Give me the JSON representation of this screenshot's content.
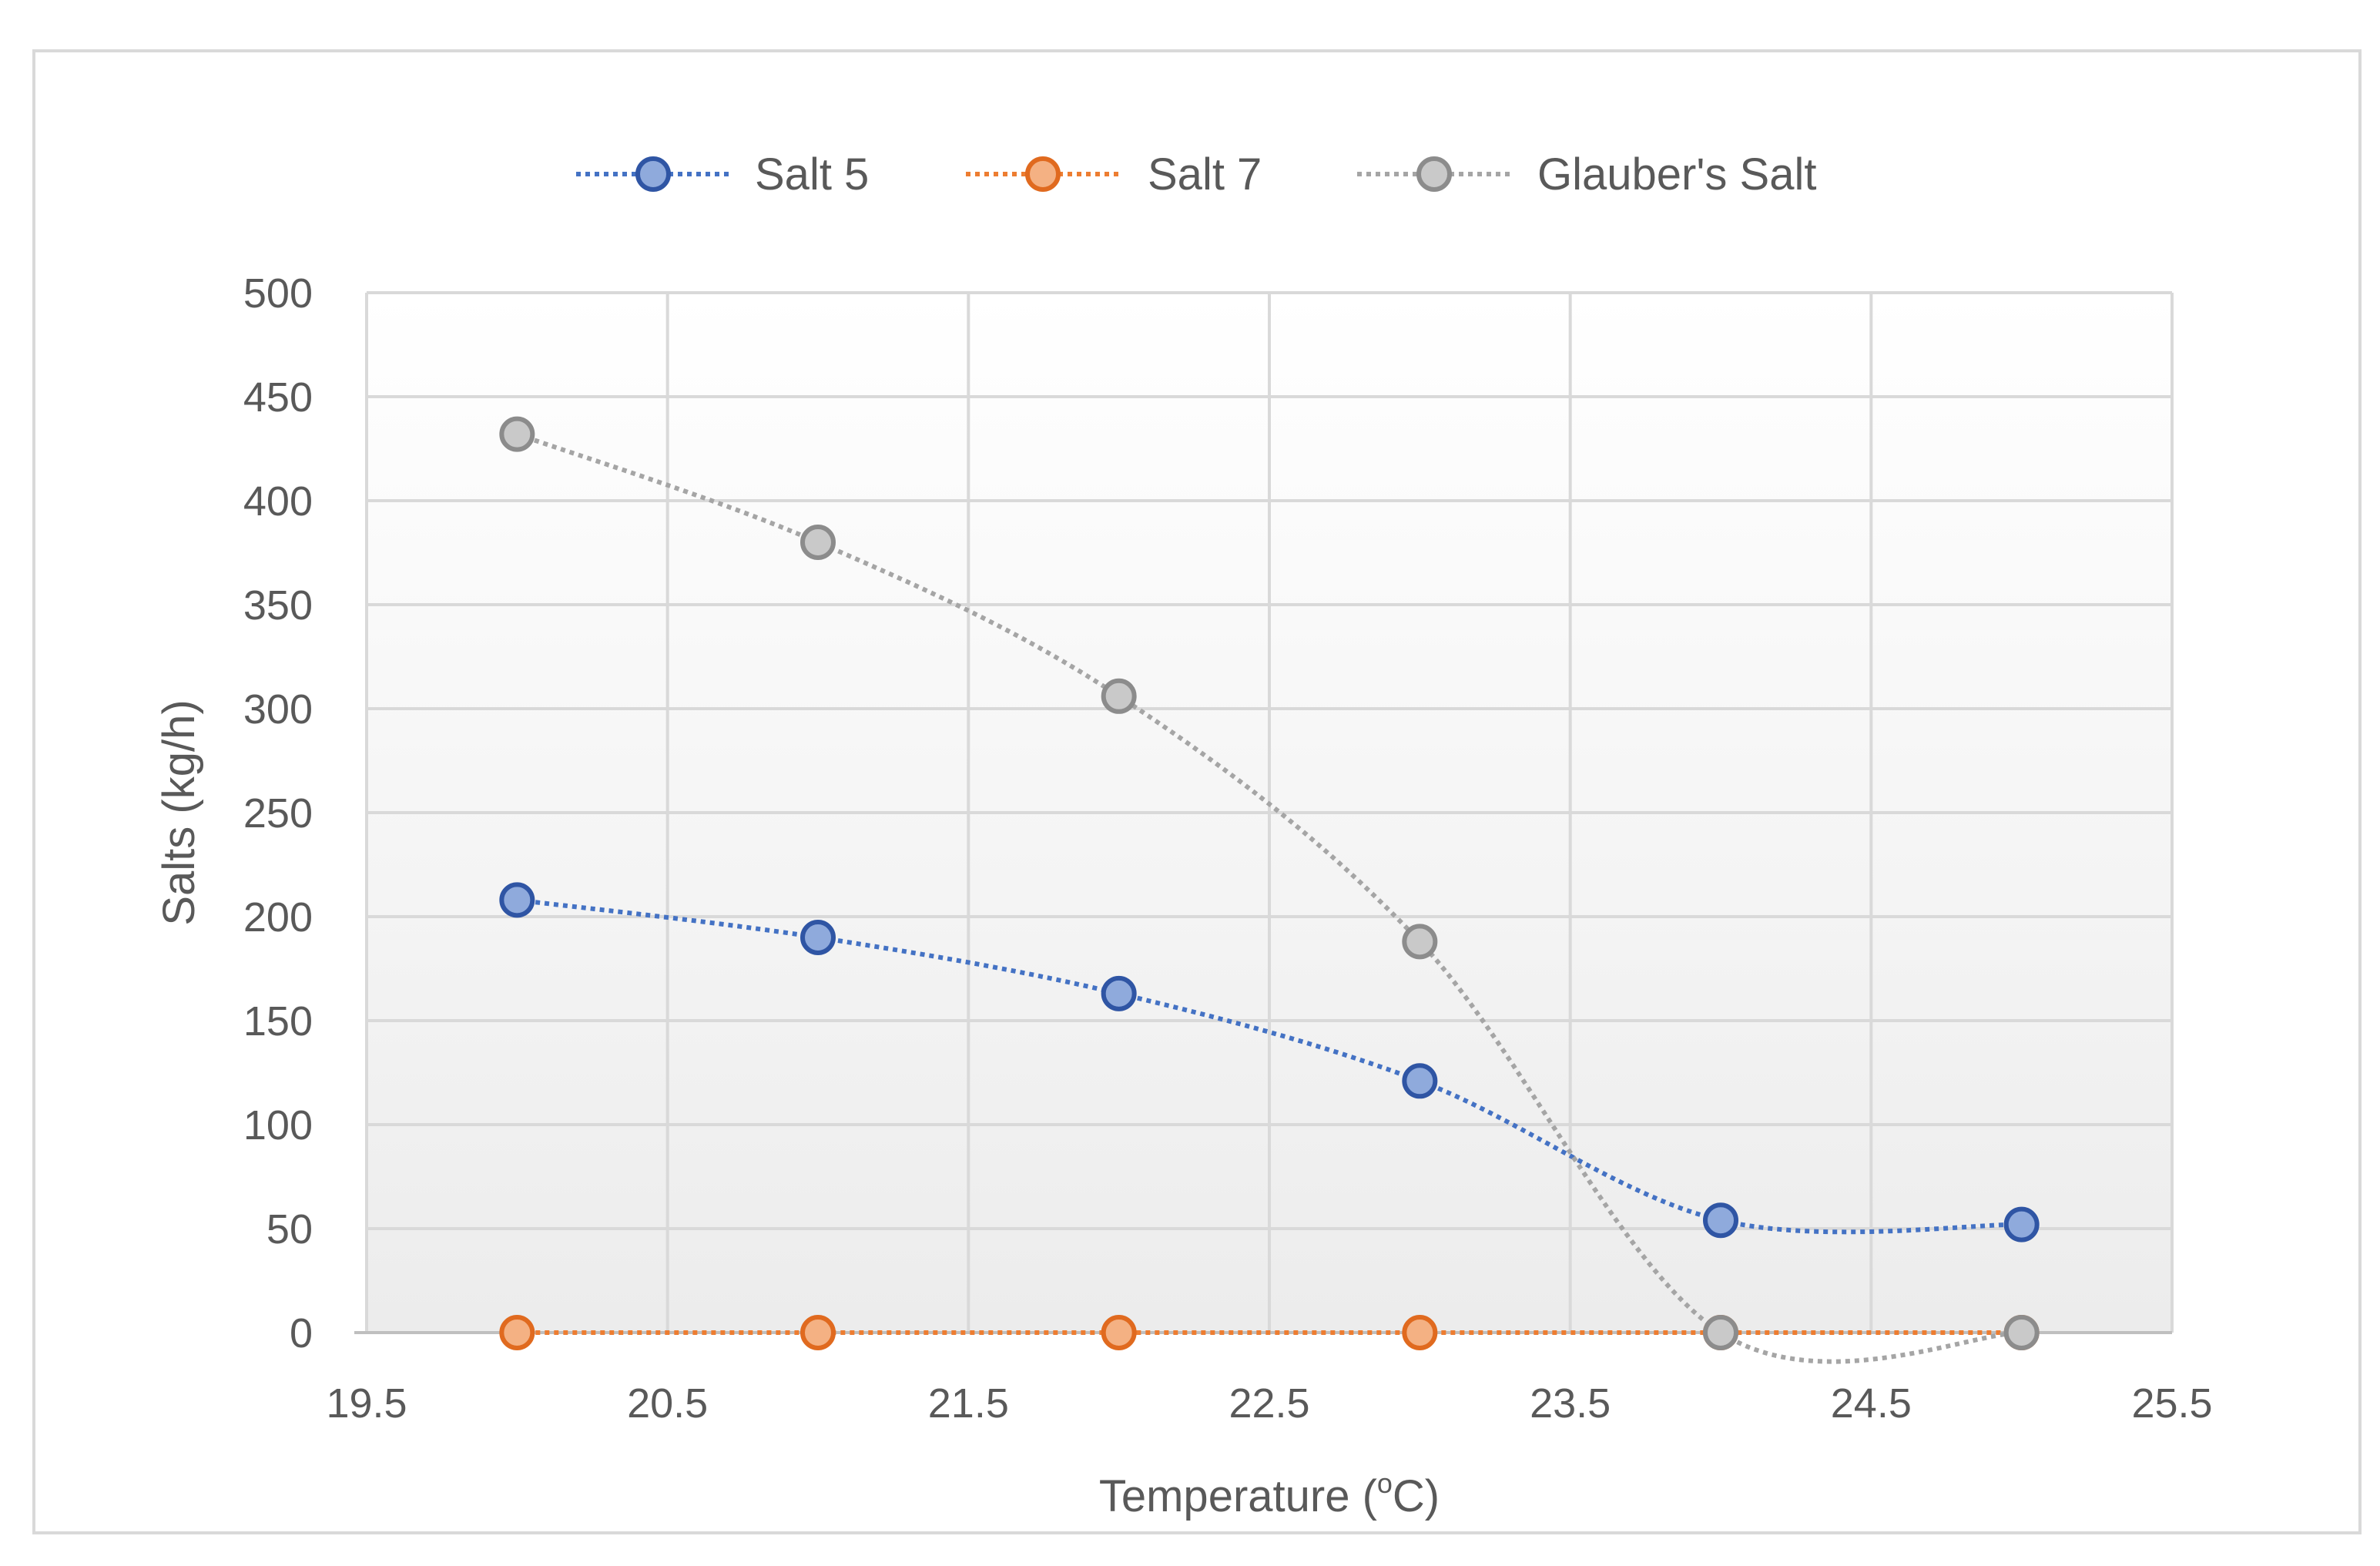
{
  "chart_data": {
    "type": "scatter",
    "title": "",
    "xlabel": "Temperature (",
    "xlabel_sup": "o",
    "xlabel_suffix": "C)",
    "ylabel": "Salts (kg/h)",
    "xlim": [
      19.5,
      25.5
    ],
    "ylim": [
      0,
      500
    ],
    "xticks": [
      "19.5",
      "20.5",
      "21.5",
      "22.5",
      "23.5",
      "24.5",
      "25.5"
    ],
    "yticks": [
      "0",
      "50",
      "100",
      "150",
      "200",
      "250",
      "300",
      "350",
      "400",
      "450",
      "500"
    ],
    "grid": true,
    "legend_position": "top",
    "series": [
      {
        "name": "Salt 5",
        "x": [
          20,
          21,
          22,
          23,
          24,
          25
        ],
        "y": [
          208,
          190,
          163,
          121,
          54,
          52
        ],
        "line_color": "#4472c4",
        "marker_fill": "#8faadc",
        "marker_edge": "#2f55a4"
      },
      {
        "name": "Salt 7",
        "x": [
          20,
          21,
          22,
          23,
          24,
          25
        ],
        "y": [
          0,
          0,
          0,
          0,
          0,
          0
        ],
        "line_color": "#ed7d31",
        "marker_fill": "#f4b183",
        "marker_edge": "#e06a1f"
      },
      {
        "name": "Glauber's Salt",
        "x": [
          20,
          21,
          22,
          23,
          24,
          25
        ],
        "y": [
          432,
          380,
          306,
          188,
          0,
          0
        ],
        "line_color": "#a5a5a5",
        "marker_fill": "#c9c9c9",
        "marker_edge": "#8c8c8c"
      }
    ]
  }
}
